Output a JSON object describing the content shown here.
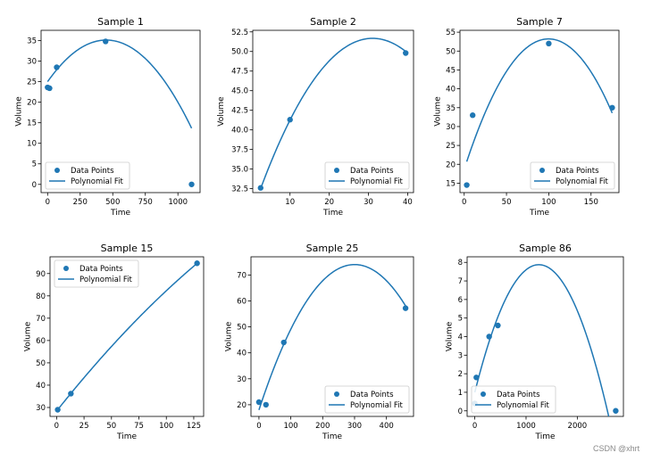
{
  "watermark": "CSDN @xhrt",
  "colors": {
    "series": "#1f77b4",
    "axis": "#000000",
    "legend_border": "#cccccc",
    "background": "#ffffff"
  },
  "legend_labels": {
    "points": "Data Points",
    "fit": "Polynomial Fit"
  },
  "chart_data": [
    {
      "type": "scatter",
      "title": "Sample 1",
      "xlabel": "Time",
      "ylabel": "Volume",
      "xlim": [
        -50,
        1170
      ],
      "ylim": [
        -2,
        37.5
      ],
      "xticks": [
        0,
        250,
        500,
        750,
        1000
      ],
      "yticks": [
        0,
        5,
        10,
        15,
        20,
        25,
        30,
        35
      ],
      "legend": "lower-left",
      "points": [
        [
          0,
          23.6
        ],
        [
          15,
          23.4
        ],
        [
          70,
          28.5
        ],
        [
          445,
          34.8
        ],
        [
          1105,
          0
        ]
      ],
      "fit": {
        "kind": "quadratic",
        "coefficients": [
          25.0,
          0.045,
          -5e-05
        ],
        "x_range": [
          0,
          1105
        ]
      }
    },
    {
      "type": "scatter",
      "title": "Sample 2",
      "xlabel": "Time",
      "ylabel": "Volume",
      "xlim": [
        0.5,
        41.5
      ],
      "ylim": [
        32,
        52.7
      ],
      "xticks": [
        10,
        20,
        30,
        40
      ],
      "yticks": [
        32.5,
        35.0,
        37.5,
        40.0,
        42.5,
        45.0,
        47.5,
        50.0,
        52.5
      ],
      "yticks_decimals": 1,
      "legend": "lower-right",
      "points": [
        [
          2.5,
          32.6
        ],
        [
          10,
          41.3
        ],
        [
          39.5,
          49.8
        ]
      ],
      "fit": {
        "kind": "quadratic",
        "coefficients": [
          29.0,
          1.46,
          -0.0235
        ],
        "x_range": [
          2.5,
          39.5
        ]
      }
    },
    {
      "type": "scatter",
      "title": "Sample 7",
      "xlabel": "Time",
      "ylabel": "Volume",
      "xlim": [
        -5,
        183
      ],
      "ylim": [
        12.5,
        55.5
      ],
      "xticks": [
        0,
        50,
        100,
        150
      ],
      "yticks": [
        15,
        20,
        25,
        30,
        35,
        40,
        45,
        50,
        55
      ],
      "legend": "lower-right",
      "points": [
        [
          3,
          14.5
        ],
        [
          10,
          33
        ],
        [
          100,
          52
        ],
        [
          175,
          35
        ]
      ],
      "fit": {
        "kind": "quadratic",
        "coefficients": [
          18.67,
          0.6925,
          -0.00347
        ],
        "x_range": [
          3,
          175
        ]
      }
    },
    {
      "type": "scatter",
      "title": "Sample 15",
      "xlabel": "Time",
      "ylabel": "Volume",
      "xlim": [
        -6,
        134
      ],
      "ylim": [
        26,
        97.5
      ],
      "xticks": [
        0,
        25,
        50,
        75,
        100,
        125
      ],
      "yticks": [
        30,
        40,
        50,
        60,
        70,
        80,
        90
      ],
      "legend": "upper-left",
      "points": [
        [
          1,
          29
        ],
        [
          13,
          36.2
        ],
        [
          128,
          94.6
        ]
      ],
      "fit": {
        "kind": "quadratic",
        "coefficients": [
          28.4,
          0.618,
          -0.00079
        ],
        "x_range": [
          1,
          128
        ]
      }
    },
    {
      "type": "scatter",
      "title": "Sample 25",
      "xlabel": "Time",
      "ylabel": "Volume",
      "xlim": [
        -25,
        485
      ],
      "ylim": [
        15.5,
        77
      ],
      "xticks": [
        0,
        100,
        200,
        300,
        400
      ],
      "yticks": [
        20,
        30,
        40,
        50,
        60,
        70
      ],
      "legend": "lower-right",
      "points": [
        [
          0,
          21
        ],
        [
          22,
          20
        ],
        [
          78,
          44
        ],
        [
          460,
          57.2
        ]
      ],
      "fit": {
        "kind": "quadratic",
        "coefficients": [
          18.0,
          0.3733,
          -0.000622
        ],
        "x_range": [
          0,
          460
        ]
      }
    },
    {
      "type": "scatter",
      "title": "Sample 86",
      "xlabel": "Time",
      "ylabel": "Volume",
      "xlim": [
        -150,
        2900
      ],
      "ylim": [
        -0.3,
        8.3
      ],
      "xticks": [
        0,
        1000,
        2000
      ],
      "yticks": [
        0,
        1,
        2,
        3,
        4,
        5,
        6,
        7,
        8
      ],
      "legend": "lower-left",
      "points": [
        [
          0,
          0.4
        ],
        [
          30,
          1.8
        ],
        [
          280,
          4.0
        ],
        [
          450,
          4.6
        ],
        [
          2750,
          0
        ]
      ],
      "fit": {
        "kind": "quadratic",
        "coefficients": [
          1.0,
          0.011,
          -4.4e-06
        ],
        "x_range": [
          0,
          2750
        ]
      }
    }
  ]
}
